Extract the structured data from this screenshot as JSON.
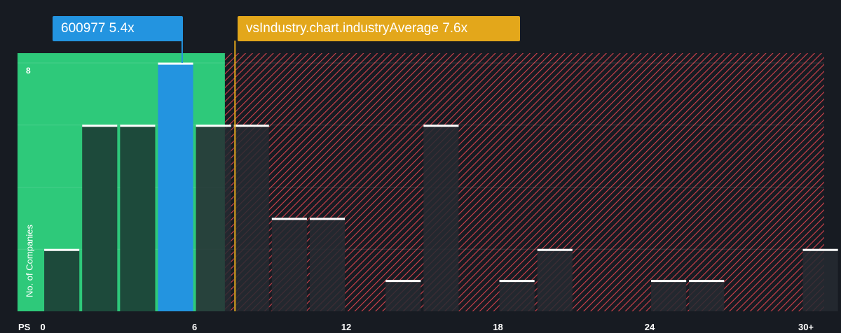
{
  "header": {
    "company_label": "600977 5.4x",
    "industry_label": "vsIndustry.chart.industryAverage 7.6x"
  },
  "chart_data": {
    "type": "bar",
    "xlabel": "PS",
    "ylabel": "No. of Companies",
    "x_ticks": [
      "0",
      "6",
      "12",
      "18",
      "24",
      "30+"
    ],
    "x_tick_values": [
      0,
      6,
      12,
      18,
      24,
      30
    ],
    "y_ticks": [
      "8"
    ],
    "ylim": [
      0,
      8
    ],
    "xlim": [
      -1,
      30.9
    ],
    "bin_width": 1.5,
    "bins": [
      {
        "start": 0,
        "value": 2
      },
      {
        "start": 1.5,
        "value": 6
      },
      {
        "start": 3,
        "value": 6
      },
      {
        "start": 4.5,
        "value": 8,
        "highlight": true
      },
      {
        "start": 6,
        "value": 6
      },
      {
        "start": 7.5,
        "value": 6
      },
      {
        "start": 9,
        "value": 3
      },
      {
        "start": 10.5,
        "value": 3
      },
      {
        "start": 13.5,
        "value": 1
      },
      {
        "start": 15,
        "value": 6
      },
      {
        "start": 18,
        "value": 1
      },
      {
        "start": 19.5,
        "value": 2
      },
      {
        "start": 24,
        "value": 1
      },
      {
        "start": 25.5,
        "value": 1
      },
      {
        "start": 30,
        "value": 2
      }
    ],
    "company_value": 5.4,
    "industry_average": 7.6,
    "fair_zone_end": 7.2,
    "colors": {
      "background": "#171b22",
      "fair_zone": "#2ec97a",
      "bar_dark": "#1d4a3b",
      "bar_hatched": "#262a31",
      "highlight": "#2394e0",
      "industry_line": "#e3a71b",
      "hatch": "#d3424c",
      "bar_top": "#ffffff"
    }
  }
}
